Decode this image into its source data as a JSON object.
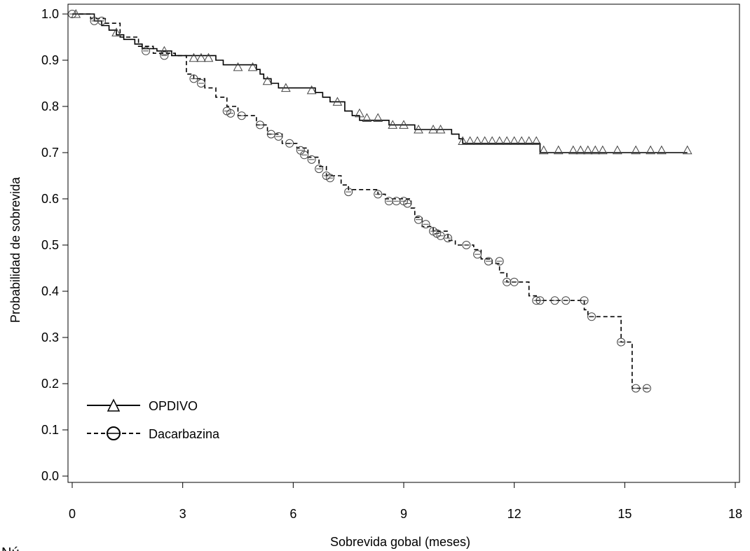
{
  "chart_data": {
    "type": "line",
    "step": true,
    "title": "",
    "xlabel": "Sobrevida gobal (meses)",
    "ylabel": "Probabilidad de sobrevida",
    "xlim": [
      0,
      18
    ],
    "ylim": [
      0.0,
      1.0
    ],
    "xticks": [
      0,
      3,
      6,
      9,
      12,
      15,
      18
    ],
    "yticks": [
      0.0,
      0.1,
      0.2,
      0.3,
      0.4,
      0.5,
      0.6,
      0.7,
      0.8,
      0.9,
      1.0
    ],
    "xtick_labels": [
      "0",
      "3",
      "6",
      "9",
      "12",
      "15",
      "18"
    ],
    "ytick_labels": [
      "0.0",
      "0.1",
      "0.2",
      "0.3",
      "0.4",
      "0.5",
      "0.6",
      "0.7",
      "0.8",
      "0.9",
      "1.0"
    ],
    "grid": false,
    "legend_position": "bottom-left",
    "partial_text_below": "Nú",
    "series": [
      {
        "name": "OPDIVO",
        "line_style": "solid",
        "marker": "triangle",
        "color": "#000000",
        "steps": [
          [
            0,
            1.0
          ],
          [
            0.6,
            0.985
          ],
          [
            0.8,
            0.975
          ],
          [
            1.0,
            0.965
          ],
          [
            1.2,
            0.955
          ],
          [
            1.4,
            0.945
          ],
          [
            1.7,
            0.935
          ],
          [
            1.9,
            0.925
          ],
          [
            2.3,
            0.92
          ],
          [
            2.7,
            0.91
          ],
          [
            3.9,
            0.9
          ],
          [
            4.1,
            0.89
          ],
          [
            5.0,
            0.88
          ],
          [
            5.1,
            0.87
          ],
          [
            5.2,
            0.86
          ],
          [
            5.4,
            0.85
          ],
          [
            5.6,
            0.84
          ],
          [
            6.6,
            0.83
          ],
          [
            6.8,
            0.82
          ],
          [
            7.0,
            0.81
          ],
          [
            7.4,
            0.79
          ],
          [
            7.6,
            0.78
          ],
          [
            7.8,
            0.77
          ],
          [
            8.6,
            0.76
          ],
          [
            9.3,
            0.75
          ],
          [
            10.3,
            0.74
          ],
          [
            10.5,
            0.73
          ],
          [
            10.6,
            0.72
          ],
          [
            12.7,
            0.7
          ],
          [
            16.7,
            0.7
          ]
        ],
        "censored": [
          [
            0.1,
            1.0
          ],
          [
            1.2,
            0.96
          ],
          [
            2.5,
            0.92
          ],
          [
            3.3,
            0.905
          ],
          [
            3.5,
            0.905
          ],
          [
            3.7,
            0.905
          ],
          [
            4.5,
            0.885
          ],
          [
            4.9,
            0.885
          ],
          [
            5.3,
            0.855
          ],
          [
            5.8,
            0.84
          ],
          [
            6.5,
            0.835
          ],
          [
            7.2,
            0.81
          ],
          [
            7.8,
            0.785
          ],
          [
            8.0,
            0.775
          ],
          [
            8.3,
            0.775
          ],
          [
            8.7,
            0.76
          ],
          [
            9.0,
            0.76
          ],
          [
            9.4,
            0.75
          ],
          [
            9.8,
            0.75
          ],
          [
            10.0,
            0.75
          ],
          [
            10.6,
            0.725
          ],
          [
            10.8,
            0.725
          ],
          [
            11.0,
            0.725
          ],
          [
            11.2,
            0.725
          ],
          [
            11.4,
            0.725
          ],
          [
            11.6,
            0.725
          ],
          [
            11.8,
            0.725
          ],
          [
            12.0,
            0.725
          ],
          [
            12.2,
            0.725
          ],
          [
            12.4,
            0.725
          ],
          [
            12.6,
            0.725
          ],
          [
            12.8,
            0.705
          ],
          [
            13.2,
            0.705
          ],
          [
            13.6,
            0.705
          ],
          [
            13.8,
            0.705
          ],
          [
            14.0,
            0.705
          ],
          [
            14.2,
            0.705
          ],
          [
            14.4,
            0.705
          ],
          [
            14.8,
            0.705
          ],
          [
            15.3,
            0.705
          ],
          [
            15.7,
            0.705
          ],
          [
            16.0,
            0.705
          ],
          [
            16.7,
            0.705
          ]
        ]
      },
      {
        "name": "Dacarbazina",
        "line_style": "dashed",
        "marker": "circle",
        "color": "#000000",
        "steps": [
          [
            0,
            1.0
          ],
          [
            0.5,
            0.99
          ],
          [
            0.9,
            0.98
          ],
          [
            1.3,
            0.95
          ],
          [
            1.8,
            0.93
          ],
          [
            2.2,
            0.915
          ],
          [
            2.8,
            0.91
          ],
          [
            3.1,
            0.87
          ],
          [
            3.3,
            0.86
          ],
          [
            3.6,
            0.84
          ],
          [
            3.9,
            0.82
          ],
          [
            4.2,
            0.8
          ],
          [
            4.5,
            0.78
          ],
          [
            5.0,
            0.76
          ],
          [
            5.3,
            0.74
          ],
          [
            5.7,
            0.72
          ],
          [
            6.1,
            0.71
          ],
          [
            6.4,
            0.69
          ],
          [
            6.7,
            0.67
          ],
          [
            6.9,
            0.65
          ],
          [
            7.3,
            0.63
          ],
          [
            7.5,
            0.62
          ],
          [
            8.3,
            0.61
          ],
          [
            8.5,
            0.6
          ],
          [
            9.2,
            0.58
          ],
          [
            9.3,
            0.56
          ],
          [
            9.5,
            0.54
          ],
          [
            9.8,
            0.53
          ],
          [
            10.2,
            0.51
          ],
          [
            10.4,
            0.5
          ],
          [
            10.9,
            0.49
          ],
          [
            11.1,
            0.47
          ],
          [
            11.4,
            0.46
          ],
          [
            11.6,
            0.44
          ],
          [
            11.8,
            0.42
          ],
          [
            12.4,
            0.39
          ],
          [
            12.6,
            0.38
          ],
          [
            13.9,
            0.36
          ],
          [
            14.0,
            0.345
          ],
          [
            14.9,
            0.29
          ],
          [
            15.2,
            0.19
          ],
          [
            15.7,
            0.19
          ]
        ],
        "censored": [
          [
            0.0,
            1.0
          ],
          [
            0.6,
            0.985
          ],
          [
            0.8,
            0.985
          ],
          [
            2.0,
            0.92
          ],
          [
            2.5,
            0.91
          ],
          [
            3.3,
            0.86
          ],
          [
            3.5,
            0.85
          ],
          [
            4.2,
            0.79
          ],
          [
            4.3,
            0.785
          ],
          [
            4.6,
            0.78
          ],
          [
            5.1,
            0.76
          ],
          [
            5.4,
            0.74
          ],
          [
            5.6,
            0.735
          ],
          [
            5.9,
            0.72
          ],
          [
            6.2,
            0.705
          ],
          [
            6.3,
            0.695
          ],
          [
            6.5,
            0.685
          ],
          [
            6.7,
            0.665
          ],
          [
            6.9,
            0.65
          ],
          [
            7.0,
            0.645
          ],
          [
            7.5,
            0.615
          ],
          [
            8.3,
            0.61
          ],
          [
            8.6,
            0.595
          ],
          [
            8.8,
            0.595
          ],
          [
            9.0,
            0.595
          ],
          [
            9.1,
            0.59
          ],
          [
            9.4,
            0.555
          ],
          [
            9.6,
            0.545
          ],
          [
            9.8,
            0.53
          ],
          [
            9.9,
            0.525
          ],
          [
            10.0,
            0.52
          ],
          [
            10.2,
            0.515
          ],
          [
            10.7,
            0.5
          ],
          [
            11.0,
            0.48
          ],
          [
            11.3,
            0.465
          ],
          [
            11.6,
            0.465
          ],
          [
            11.8,
            0.42
          ],
          [
            12.0,
            0.42
          ],
          [
            12.6,
            0.38
          ],
          [
            12.7,
            0.38
          ],
          [
            13.1,
            0.38
          ],
          [
            13.4,
            0.38
          ],
          [
            13.9,
            0.38
          ],
          [
            14.1,
            0.345
          ],
          [
            14.9,
            0.29
          ],
          [
            15.3,
            0.19
          ],
          [
            15.6,
            0.19
          ]
        ]
      }
    ]
  }
}
